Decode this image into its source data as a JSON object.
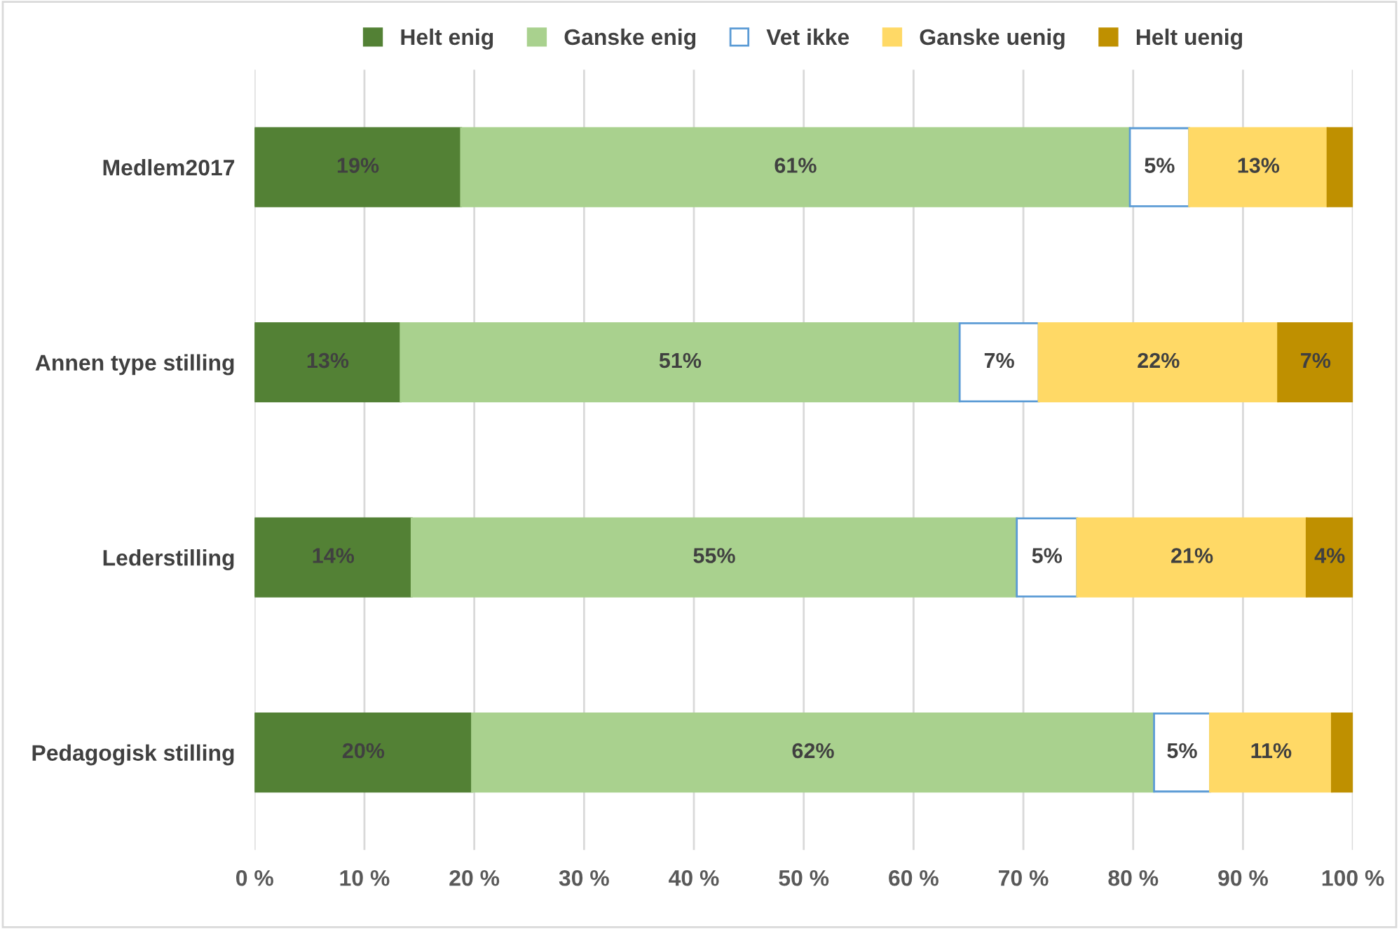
{
  "chart_data": {
    "type": "bar",
    "orientation": "horizontal",
    "stacked": true,
    "categories": [
      "Medlem2017",
      "Annen type stilling",
      "Lederstilling",
      "Pedagogisk stilling"
    ],
    "series": [
      {
        "name": "Helt enig",
        "color": "#538135",
        "values": [
          18.8,
          13.3,
          14.3,
          19.8
        ],
        "value_labels": [
          "19%",
          "13%",
          "14%",
          "20%"
        ]
      },
      {
        "name": "Ganske enig",
        "color": "#a9d18e",
        "values": [
          60.9,
          50.9,
          55.1,
          62.1
        ],
        "value_labels": [
          "61%",
          "51%",
          "55%",
          "62%"
        ]
      },
      {
        "name": "Vet ikke",
        "color": "#ffffff",
        "values": [
          5.4,
          7.2,
          5.5,
          5.1
        ],
        "value_labels": [
          "5%",
          "7%",
          "5%",
          "5%"
        ]
      },
      {
        "name": "Ganske uenig",
        "color": "#ffd966",
        "values": [
          12.6,
          21.8,
          20.9,
          11.1
        ],
        "value_labels": [
          "13%",
          "22%",
          "21%",
          "11%"
        ]
      },
      {
        "name": "Helt uenig",
        "color": "#bf9000",
        "values": [
          2.3,
          6.8,
          4.2,
          1.9
        ],
        "value_labels": [
          null,
          "7%",
          "4%",
          null
        ]
      }
    ],
    "xlim": [
      0,
      100
    ],
    "xticks": [
      {
        "value": 0,
        "label": "0 %"
      },
      {
        "value": 10,
        "label": "10 %"
      },
      {
        "value": 20,
        "label": "20 %"
      },
      {
        "value": 30,
        "label": "30 %"
      },
      {
        "value": 40,
        "label": "40 %"
      },
      {
        "value": 50,
        "label": "50 %"
      },
      {
        "value": 60,
        "label": "60 %"
      },
      {
        "value": 70,
        "label": "70 %"
      },
      {
        "value": 80,
        "label": "80 %"
      },
      {
        "value": 90,
        "label": "90 %"
      },
      {
        "value": 100,
        "label": "100 %"
      }
    ],
    "grid": "x",
    "legend": "top"
  }
}
